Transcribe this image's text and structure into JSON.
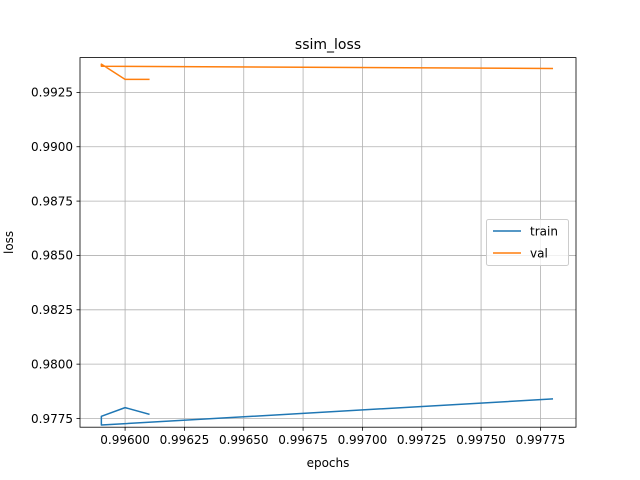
{
  "chart_data": {
    "type": "line",
    "title": "ssim_loss",
    "xlabel": "epochs",
    "ylabel": "loss",
    "grid": true,
    "legend_position": "center-right",
    "xlim": [
      0.99581,
      0.9979
    ],
    "ylim": [
      0.9771,
      0.9941
    ],
    "x_ticks": [
      0.996,
      0.99625,
      0.9965,
      0.99675,
      0.997,
      0.99725,
      0.9975,
      0.99775
    ],
    "x_tick_labels": [
      "0.99600",
      "0.99625",
      "0.99650",
      "0.99675",
      "0.99700",
      "0.99725",
      "0.99750",
      "0.99775"
    ],
    "y_ticks": [
      0.9775,
      0.98,
      0.9825,
      0.985,
      0.9875,
      0.99,
      0.9925
    ],
    "y_tick_labels": [
      "0.9775",
      "0.9800",
      "0.9825",
      "0.9850",
      "0.9875",
      "0.9900",
      "0.9925"
    ],
    "series": [
      {
        "name": "train",
        "color": "#1f77b4",
        "x": [
          0.9961,
          0.996,
          0.9959,
          0.9959,
          0.9978
        ],
        "y": [
          0.9777,
          0.978,
          0.9776,
          0.9772,
          0.9784
        ]
      },
      {
        "name": "val",
        "color": "#ff7f0e",
        "x": [
          0.9961,
          0.996,
          0.9959,
          0.9959,
          0.9978
        ],
        "y": [
          0.9931,
          0.9931,
          0.9938,
          0.9937,
          0.9936
        ]
      }
    ]
  }
}
